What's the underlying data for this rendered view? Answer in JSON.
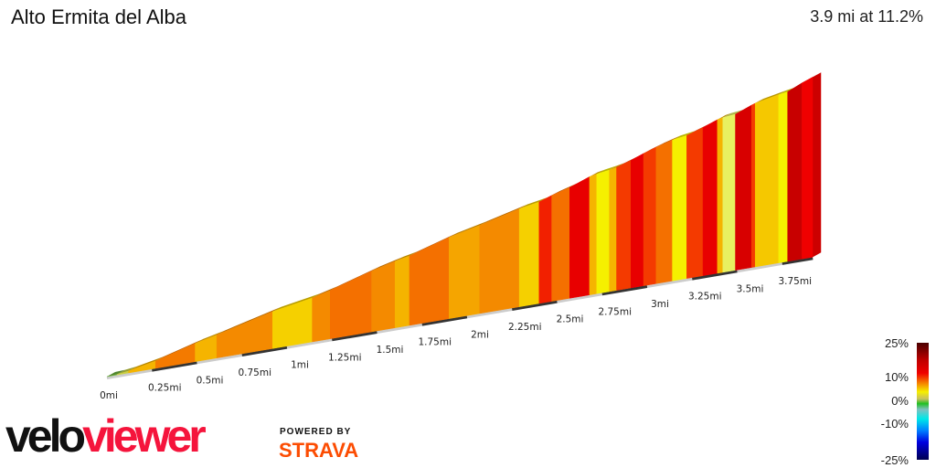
{
  "header": {
    "title": "Alto Ermita del Alba",
    "summary": "3.9 mi at 11.2%"
  },
  "chart_data": {
    "type": "area",
    "style": "3d elevation profile colored by gradient",
    "x_unit": "mi",
    "x_ticks": [
      "0mi",
      "0.25mi",
      "0.5mi",
      "0.75mi",
      "1mi",
      "1.25mi",
      "1.5mi",
      "1.75mi",
      "2mi",
      "2.25mi",
      "2.5mi",
      "2.75mi",
      "3mi",
      "3.25mi",
      "3.5mi",
      "3.75mi"
    ],
    "x_tick_values": [
      0,
      0.25,
      0.5,
      0.75,
      1,
      1.25,
      1.5,
      1.75,
      2,
      2.25,
      2.5,
      2.75,
      3,
      3.25,
      3.5,
      3.75
    ],
    "total_distance_mi": 3.9,
    "average_gradient_pct": 11.2,
    "segments": [
      {
        "start": 0,
        "end": 0.055,
        "grade": 2,
        "color": "#6db33f"
      },
      {
        "start": 0.055,
        "end": 0.12,
        "grade": 5,
        "color": "#c8d040"
      },
      {
        "start": 0.12,
        "end": 0.27,
        "grade": 8,
        "color": "#f5b400"
      },
      {
        "start": 0.27,
        "end": 0.49,
        "grade": 11,
        "color": "#f47a00"
      },
      {
        "start": 0.49,
        "end": 0.61,
        "grade": 9,
        "color": "#f5b400"
      },
      {
        "start": 0.61,
        "end": 0.92,
        "grade": 10,
        "color": "#f48a00"
      },
      {
        "start": 0.92,
        "end": 1.14,
        "grade": 7,
        "color": "#f5d000"
      },
      {
        "start": 1.14,
        "end": 1.24,
        "grade": 10,
        "color": "#f48a00"
      },
      {
        "start": 1.24,
        "end": 1.47,
        "grade": 12,
        "color": "#f47000"
      },
      {
        "start": 1.47,
        "end": 1.6,
        "grade": 10,
        "color": "#f48a00"
      },
      {
        "start": 1.6,
        "end": 1.68,
        "grade": 8,
        "color": "#f5b400"
      },
      {
        "start": 1.68,
        "end": 1.9,
        "grade": 12,
        "color": "#f47000"
      },
      {
        "start": 1.9,
        "end": 2.07,
        "grade": 9,
        "color": "#f5a500"
      },
      {
        "start": 2.07,
        "end": 2.29,
        "grade": 10,
        "color": "#f48a00"
      },
      {
        "start": 2.29,
        "end": 2.4,
        "grade": 7,
        "color": "#f5d000"
      },
      {
        "start": 2.4,
        "end": 2.47,
        "grade": 14,
        "color": "#f22000"
      },
      {
        "start": 2.47,
        "end": 2.57,
        "grade": 11,
        "color": "#f47000"
      },
      {
        "start": 2.57,
        "end": 2.68,
        "grade": 15,
        "color": "#e80000"
      },
      {
        "start": 2.68,
        "end": 2.72,
        "grade": 8,
        "color": "#f5b400"
      },
      {
        "start": 2.72,
        "end": 2.79,
        "grade": 6,
        "color": "#f5f000"
      },
      {
        "start": 2.79,
        "end": 2.83,
        "grade": 8,
        "color": "#f5b400"
      },
      {
        "start": 2.83,
        "end": 2.91,
        "grade": 13,
        "color": "#f43a00"
      },
      {
        "start": 2.91,
        "end": 2.98,
        "grade": 15,
        "color": "#e80000"
      },
      {
        "start": 2.98,
        "end": 3.05,
        "grade": 13,
        "color": "#f43a00"
      },
      {
        "start": 3.05,
        "end": 3.14,
        "grade": 11,
        "color": "#f47000"
      },
      {
        "start": 3.14,
        "end": 3.22,
        "grade": 6,
        "color": "#f5f000"
      },
      {
        "start": 3.22,
        "end": 3.31,
        "grade": 13,
        "color": "#f43a00"
      },
      {
        "start": 3.31,
        "end": 3.39,
        "grade": 15,
        "color": "#e80000"
      },
      {
        "start": 3.39,
        "end": 3.42,
        "grade": 8,
        "color": "#f5b400"
      },
      {
        "start": 3.42,
        "end": 3.49,
        "grade": 4,
        "color": "#e8f060"
      },
      {
        "start": 3.49,
        "end": 3.58,
        "grade": 16,
        "color": "#d80000"
      },
      {
        "start": 3.58,
        "end": 3.6,
        "grade": 13,
        "color": "#f43a00"
      },
      {
        "start": 3.6,
        "end": 3.73,
        "grade": 8,
        "color": "#f5c800"
      },
      {
        "start": 3.73,
        "end": 3.78,
        "grade": 6,
        "color": "#f5f000"
      },
      {
        "start": 3.78,
        "end": 3.86,
        "grade": 18,
        "color": "#c80000"
      },
      {
        "start": 3.86,
        "end": 3.92,
        "grade": 15,
        "color": "#f00000"
      }
    ]
  },
  "legend": {
    "labels": [
      "25%",
      "10%",
      "0%",
      "-10%",
      "-25%"
    ],
    "colors": [
      "#4a0000",
      "#f00000",
      "#f5f000",
      "#20c020",
      "#00e8e8",
      "#0000e0",
      "#000050"
    ]
  },
  "branding": {
    "logo_part1": "velo",
    "logo_part2": "viewer",
    "powered_by": "POWERED BY",
    "strava": "STRAVA"
  }
}
